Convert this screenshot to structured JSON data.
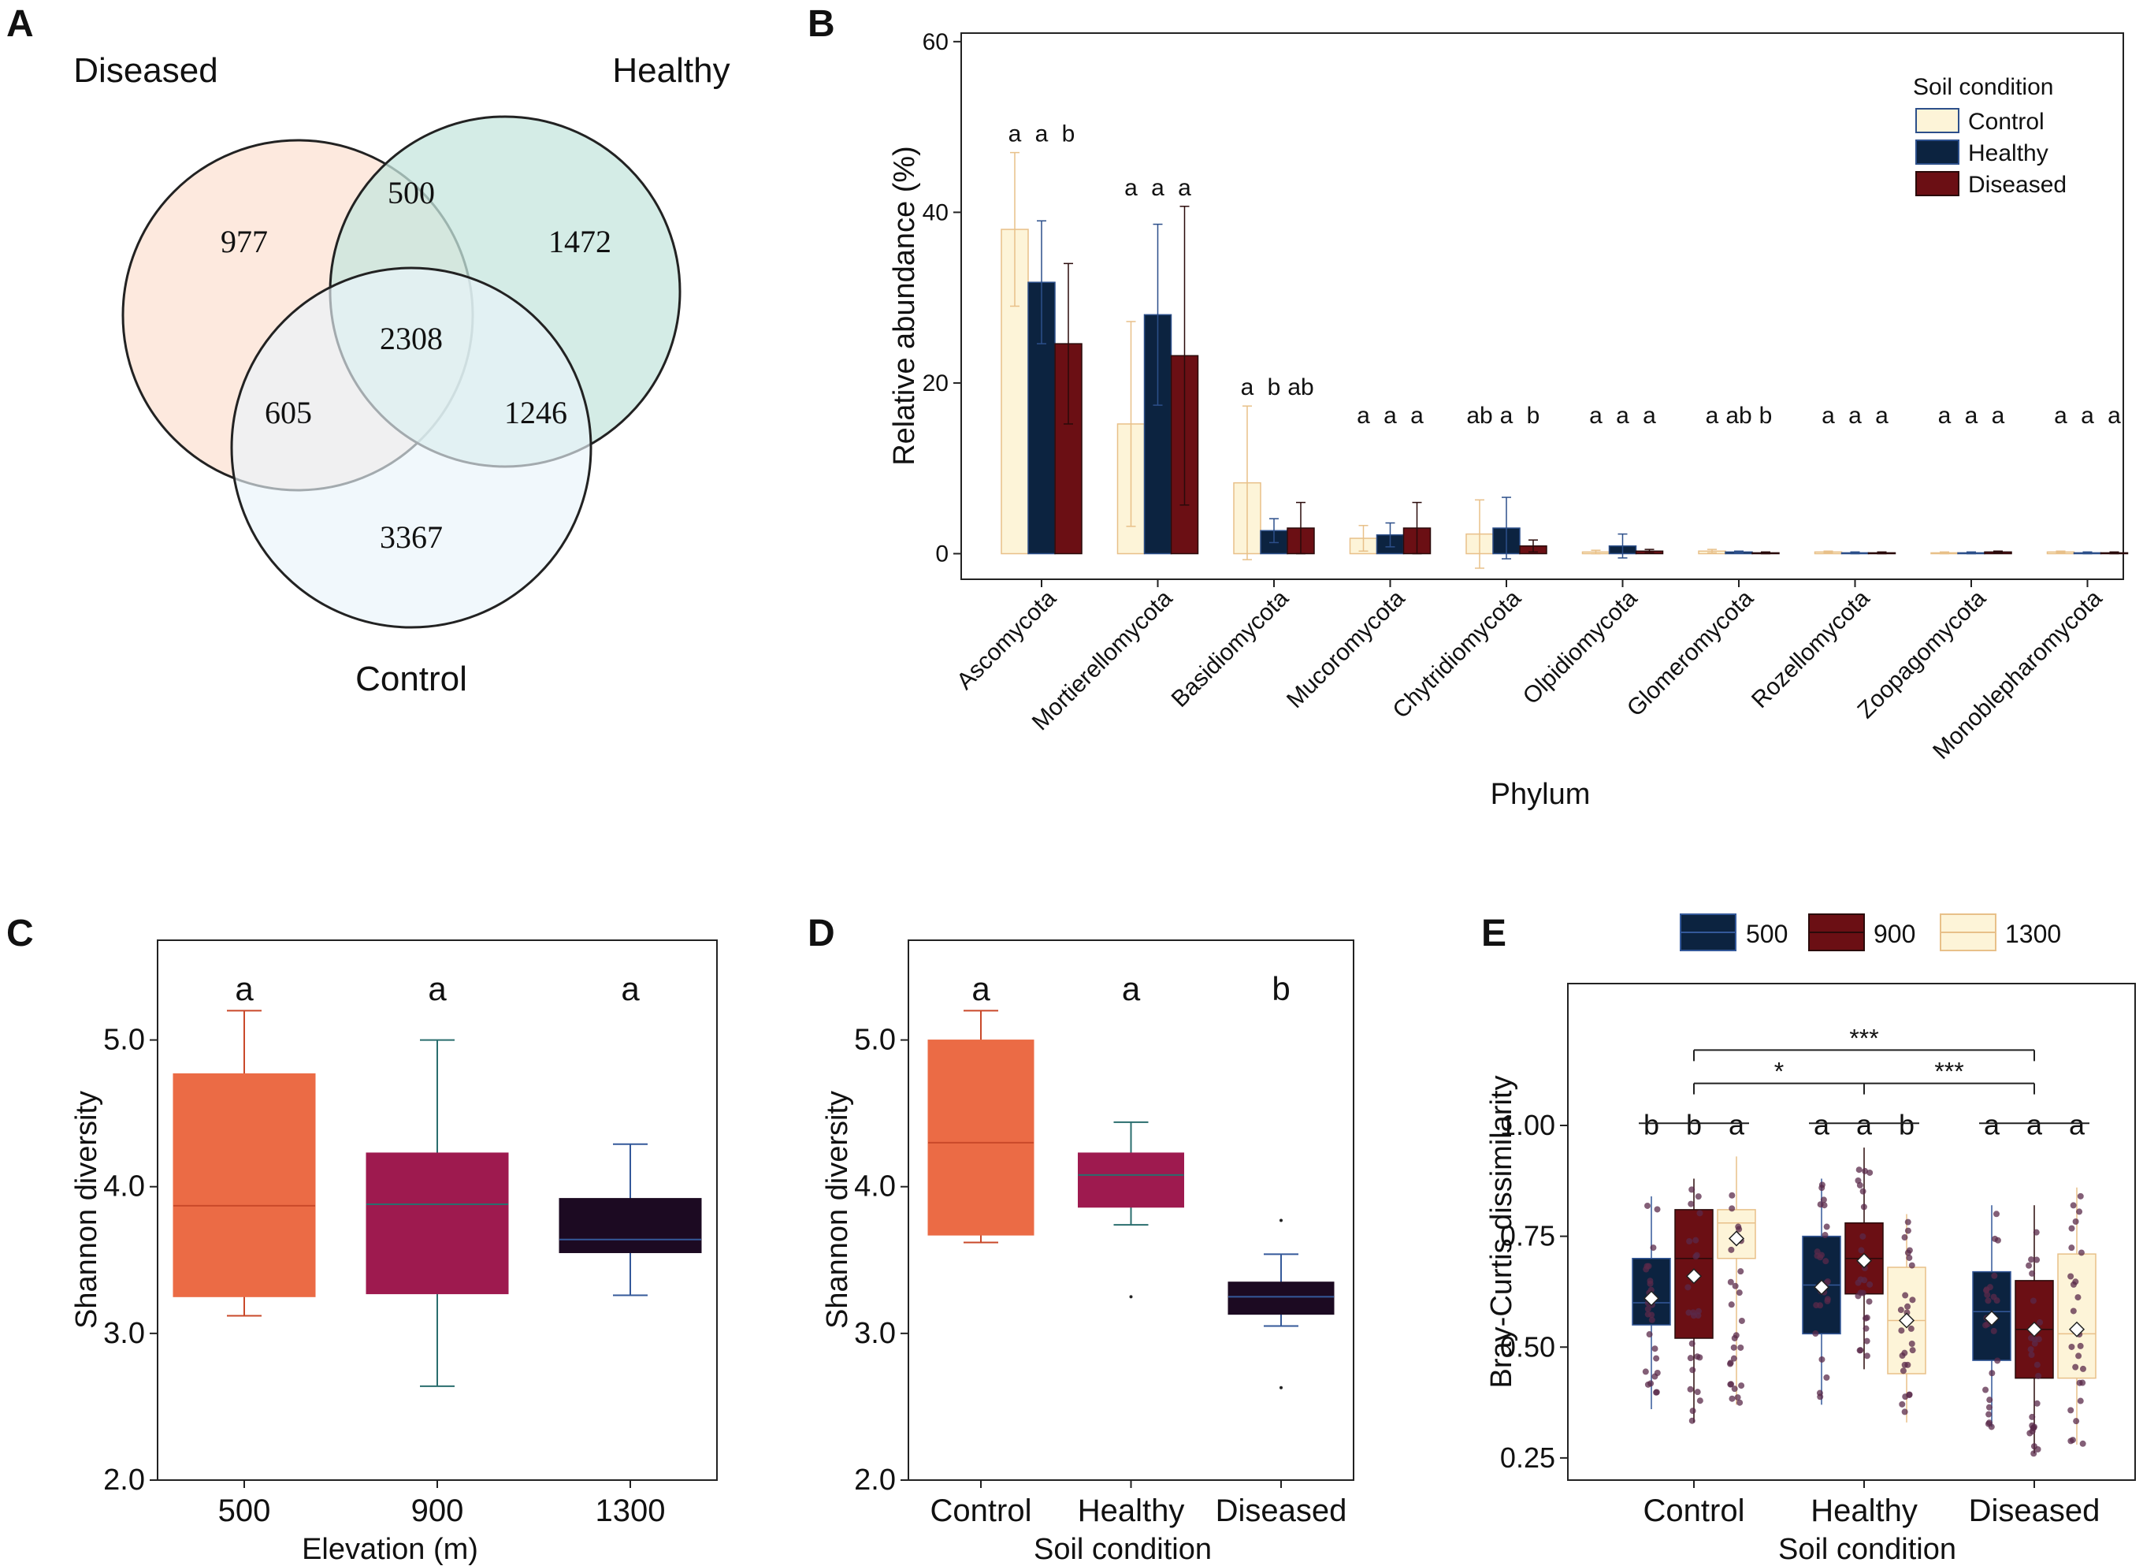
{
  "panels": [
    "A",
    "B",
    "C",
    "D",
    "E"
  ],
  "chart_data": [
    {
      "panel": "A",
      "type": "venn",
      "sets": [
        "Diseased",
        "Healthy",
        "Control"
      ],
      "colors": [
        "#fde3d6",
        "#c5e6dd",
        "#eaf5fb"
      ],
      "regions": {
        "Diseased only": 977,
        "Healthy only": 1472,
        "Control only": 3367,
        "Diseased & Healthy": 500,
        "Diseased & Control": 605,
        "Healthy & Control": 1246,
        "All three": 2308
      },
      "region_labels": [
        "977",
        "1472",
        "3367",
        "500",
        "605",
        "1246",
        "2308"
      ]
    },
    {
      "panel": "B",
      "type": "bar",
      "categories": [
        "Ascomycota",
        "Mortierellomycota",
        "Basidiomycota",
        "Mucoromycota",
        "Chytridiomycota",
        "Olpidiomycota",
        "Glomeromycota",
        "Rozellomycota",
        "Zoopagomycota",
        "Monoblepharomycota"
      ],
      "series": [
        {
          "name": "Control",
          "color": "#fdf4d8",
          "edge": "#e8c089",
          "values": [
            38,
            15.2,
            8.3,
            1.8,
            2.3,
            0.2,
            0.3,
            0.2,
            0.1,
            0.2
          ],
          "err": [
            9,
            12,
            9,
            1.5,
            4,
            0.2,
            0.2,
            0.1,
            0.1,
            0.1
          ]
        },
        {
          "name": "Healthy",
          "color": "#0c2340",
          "edge": "#2c4f8a",
          "values": [
            31.8,
            28,
            2.7,
            2.2,
            3.0,
            0.9,
            0.2,
            0.1,
            0.1,
            0.1
          ],
          "err": [
            7.2,
            10.6,
            1.4,
            1.4,
            3.6,
            1.4,
            0.1,
            0.1,
            0.1,
            0.1
          ]
        },
        {
          "name": "Diseased",
          "color": "#6b0f14",
          "edge": "#2a0a0a",
          "values": [
            24.6,
            23.2,
            3.0,
            3.0,
            0.9,
            0.3,
            0.1,
            0.1,
            0.2,
            0.1
          ],
          "err": [
            9.4,
            17.5,
            3.0,
            3.0,
            0.7,
            0.2,
            0.1,
            0.1,
            0.1,
            0.1
          ]
        }
      ],
      "significance": [
        [
          "a",
          "a",
          "b"
        ],
        [
          "a",
          "a",
          "a"
        ],
        [
          "a",
          "b",
          "ab"
        ],
        [
          "a",
          "a",
          "a"
        ],
        [
          "ab",
          "a",
          "b"
        ],
        [
          "a",
          "a",
          "a"
        ],
        [
          "a",
          "ab",
          "b"
        ],
        [
          "a",
          "a",
          "a"
        ],
        [
          "a",
          "a",
          "a"
        ],
        [
          "a",
          "a",
          "a"
        ]
      ],
      "xlabel": "Phylum",
      "ylabel": "Relative abundance (%)",
      "ylim": [
        -3,
        61
      ],
      "yticks": [
        "0",
        "20",
        "40",
        "60"
      ],
      "legend_title": "Soil condition",
      "legend_labels": [
        "Control",
        "Healthy",
        "Diseased"
      ],
      "legend_position": "top-right"
    },
    {
      "panel": "C",
      "type": "box",
      "categories": [
        "500",
        "900",
        "1300"
      ],
      "colors": [
        "#eb6b45",
        "#9e1a4f",
        "#1c0a22"
      ],
      "whisker_colors": [
        "#c9492a",
        "#2a6e6e",
        "#34599a"
      ],
      "boxes": [
        {
          "min": 3.12,
          "q1": 3.25,
          "median": 3.87,
          "q3": 4.77,
          "max": 5.2
        },
        {
          "min": 2.64,
          "q1": 3.27,
          "median": 3.88,
          "q3": 4.23,
          "max": 5.0
        },
        {
          "min": 3.26,
          "q1": 3.55,
          "median": 3.64,
          "q3": 3.92,
          "max": 4.29
        }
      ],
      "significance": [
        "a",
        "a",
        "a"
      ],
      "xlabel": "Elevation (m)",
      "ylabel": "Shannon diversity",
      "ylim": [
        2.0,
        5.68
      ],
      "yticks": [
        "2.0",
        "3.0",
        "4.0",
        "5.0"
      ]
    },
    {
      "panel": "D",
      "type": "box",
      "categories": [
        "Control",
        "Healthy",
        "Diseased"
      ],
      "colors": [
        "#eb6b45",
        "#9e1a4f",
        "#1c0a22"
      ],
      "whisker_colors": [
        "#c9492a",
        "#2a6e6e",
        "#34599a"
      ],
      "boxes": [
        {
          "min": 3.62,
          "q1": 3.67,
          "median": 4.3,
          "q3": 5.0,
          "max": 5.2,
          "outliers": []
        },
        {
          "min": 3.74,
          "q1": 3.86,
          "median": 4.08,
          "q3": 4.23,
          "max": 4.44,
          "outliers": [
            3.25
          ]
        },
        {
          "min": 3.05,
          "q1": 3.13,
          "median": 3.25,
          "q3": 3.35,
          "max": 3.54,
          "outliers": [
            3.77,
            2.63
          ]
        }
      ],
      "significance": [
        "a",
        "a",
        "b"
      ],
      "xlabel": "Soil condition",
      "ylabel": "Shannon diversity",
      "ylim": [
        2.0,
        5.68
      ],
      "yticks": [
        "2.0",
        "3.0",
        "4.0",
        "5.0"
      ]
    },
    {
      "panel": "E",
      "type": "box",
      "groups": [
        "Control",
        "Healthy",
        "Diseased"
      ],
      "series": [
        {
          "name": "500",
          "color": "#0c2340",
          "edge": "#34599a"
        },
        {
          "name": "900",
          "color": "#6b0f14",
          "edge": "#2a0a0a"
        },
        {
          "name": "1300",
          "color": "#fdf4d8",
          "edge": "#e8c089"
        }
      ],
      "boxes": [
        [
          {
            "min": 0.36,
            "q1": 0.55,
            "median": 0.6,
            "q3": 0.7,
            "max": 0.84,
            "mean": 0.61
          },
          {
            "min": 0.33,
            "q1": 0.52,
            "median": 0.7,
            "q3": 0.81,
            "max": 0.88,
            "mean": 0.66
          },
          {
            "min": 0.37,
            "q1": 0.7,
            "median": 0.78,
            "q3": 0.81,
            "max": 0.93,
            "mean": 0.745
          }
        ],
        [
          {
            "min": 0.37,
            "q1": 0.53,
            "median": 0.64,
            "q3": 0.75,
            "max": 0.88,
            "mean": 0.635
          },
          {
            "min": 0.45,
            "q1": 0.62,
            "median": 0.7,
            "q3": 0.78,
            "max": 0.95,
            "mean": 0.695
          },
          {
            "min": 0.33,
            "q1": 0.44,
            "median": 0.56,
            "q3": 0.68,
            "max": 0.8,
            "mean": 0.56
          }
        ],
        [
          {
            "min": 0.32,
            "q1": 0.47,
            "median": 0.58,
            "q3": 0.67,
            "max": 0.82,
            "mean": 0.565
          },
          {
            "min": 0.26,
            "q1": 0.43,
            "median": 0.54,
            "q3": 0.65,
            "max": 0.82,
            "mean": 0.54
          },
          {
            "min": 0.28,
            "q1": 0.43,
            "median": 0.53,
            "q3": 0.71,
            "max": 0.86,
            "mean": 0.54
          }
        ]
      ],
      "significance": [
        [
          "b",
          "b",
          "a"
        ],
        [
          "a",
          "a",
          "b"
        ],
        [
          "a",
          "a",
          "a"
        ]
      ],
      "brackets": [
        {
          "from": "Control",
          "to": "Diseased",
          "label": "***"
        },
        {
          "from": "Control",
          "to": "Healthy",
          "label": "*"
        },
        {
          "from": "Healthy",
          "to": "Diseased",
          "label": "***"
        }
      ],
      "xlabel": "Soil condition",
      "ylabel": "Bray-Curtis dissimilarity",
      "ylim": [
        0.2,
        1.32
      ],
      "yticks": [
        "0.25",
        "0.50",
        "0.75",
        "1.00"
      ],
      "legend_labels": [
        "500",
        "900",
        "1300"
      ],
      "legend_position": "top"
    }
  ]
}
